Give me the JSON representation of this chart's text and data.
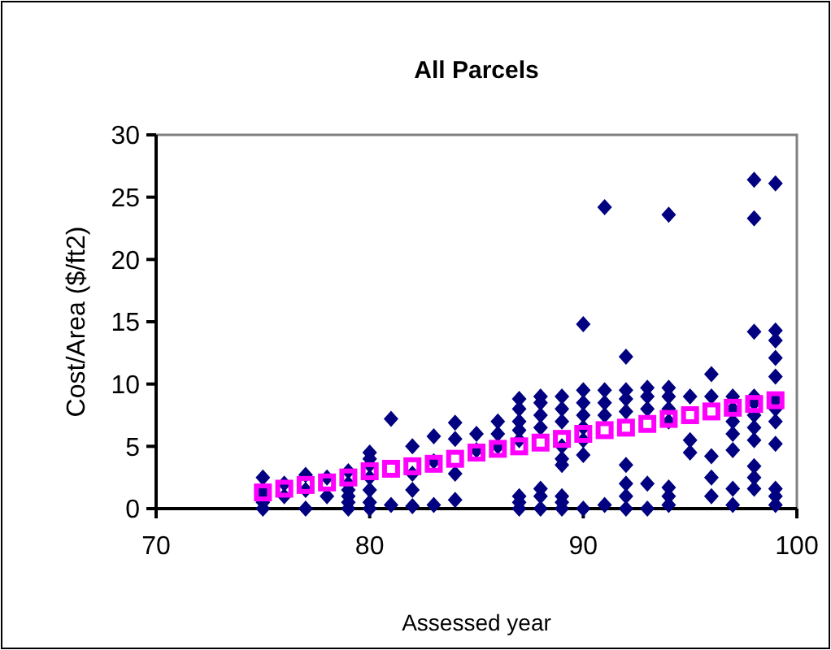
{
  "chart_data": {
    "type": "scatter",
    "title": "All Parcels",
    "xlabel": "Assessed year",
    "ylabel": "Cost/Area ($/ft2)",
    "xlim": [
      70,
      100
    ],
    "xticks": [
      70,
      80,
      90,
      100
    ],
    "ylim": [
      0,
      30
    ],
    "yticks": [
      0,
      5,
      10,
      15,
      20,
      25,
      30
    ],
    "grid": false,
    "series": [
      {
        "color": "#000080",
        "marker": "diamond",
        "x": [
          75,
          75,
          75,
          75,
          75,
          76,
          76,
          77,
          77,
          77,
          78,
          78,
          79,
          79,
          79,
          79,
          79,
          79,
          80,
          80,
          80,
          80,
          80,
          80,
          80,
          81,
          81,
          82,
          82,
          82,
          82,
          83,
          83,
          83,
          84,
          84,
          84,
          84,
          85,
          85,
          86,
          86,
          86,
          87,
          87,
          87,
          87,
          87,
          87,
          87,
          87,
          88,
          88,
          88,
          88,
          88,
          88,
          88,
          89,
          89,
          89,
          89,
          89,
          89,
          89,
          89,
          89,
          90,
          90,
          90,
          90,
          90,
          90,
          90,
          90,
          91,
          91,
          91,
          91,
          91,
          92,
          92,
          92,
          92,
          92,
          92,
          92,
          92,
          93,
          93,
          93,
          93,
          93,
          94,
          94,
          94,
          94,
          94,
          94,
          94,
          94,
          95,
          95,
          95,
          96,
          96,
          96,
          96,
          96,
          97,
          97,
          97,
          97,
          97,
          97,
          97,
          98,
          98,
          98,
          98,
          98,
          98,
          98,
          98,
          98,
          98,
          98,
          99,
          99,
          99,
          99,
          99,
          99,
          99,
          99,
          99,
          99,
          99,
          99
        ],
        "values": [
          0,
          0.5,
          1,
          1.5,
          2.5,
          1,
          2,
          0,
          1.5,
          2.7,
          1,
          2.5,
          0,
          0.5,
          1,
          1.5,
          2,
          3,
          0,
          0.5,
          1.5,
          2.5,
          3.5,
          4,
          4.5,
          0.3,
          7.2,
          0.2,
          1.5,
          2.8,
          5,
          0.3,
          3.8,
          5.8,
          0.7,
          2.8,
          5.6,
          6.9,
          4.7,
          6,
          5,
          6,
          7,
          0,
          0.5,
          1,
          5.5,
          6.3,
          7,
          8,
          8.8,
          0,
          1,
          1.6,
          6.5,
          7.5,
          8.5,
          9,
          0,
          0.5,
          1,
          3.5,
          4,
          5,
          7,
          8,
          9,
          0,
          4.3,
          5.5,
          6.5,
          7.5,
          8.5,
          9.5,
          14.8,
          0.3,
          7.5,
          8.5,
          9.5,
          24.2,
          0,
          1,
          2,
          3.5,
          7.8,
          8.8,
          9.5,
          12.2,
          0,
          2,
          8,
          9,
          9.7,
          0.3,
          1,
          1.7,
          7,
          8,
          9,
          9.7,
          23.6,
          4.5,
          5.5,
          9,
          1,
          2.5,
          4.2,
          9,
          10.8,
          0.3,
          1.6,
          4.7,
          6,
          7,
          8,
          9,
          1.6,
          2.5,
          3.4,
          5.5,
          6.5,
          7.5,
          8.5,
          9,
          14.2,
          23.3,
          26.4,
          0.3,
          1,
          1.6,
          5.2,
          7,
          8,
          8.7,
          10.6,
          12.1,
          13.5,
          14.3,
          26.1
        ]
      },
      {
        "color": "#ff00ff",
        "marker": "square",
        "x": [
          75,
          76,
          77,
          78,
          79,
          80,
          81,
          82,
          83,
          84,
          85,
          86,
          87,
          88,
          89,
          90,
          91,
          92,
          93,
          94,
          95,
          96,
          97,
          98,
          99
        ],
        "values": [
          1.3,
          1.6,
          1.9,
          2.1,
          2.5,
          3,
          3.2,
          3.4,
          3.6,
          4,
          4.5,
          4.8,
          5,
          5.3,
          5.6,
          6,
          6.3,
          6.5,
          6.8,
          7.2,
          7.5,
          7.8,
          8.1,
          8.4,
          8.7
        ]
      }
    ]
  }
}
